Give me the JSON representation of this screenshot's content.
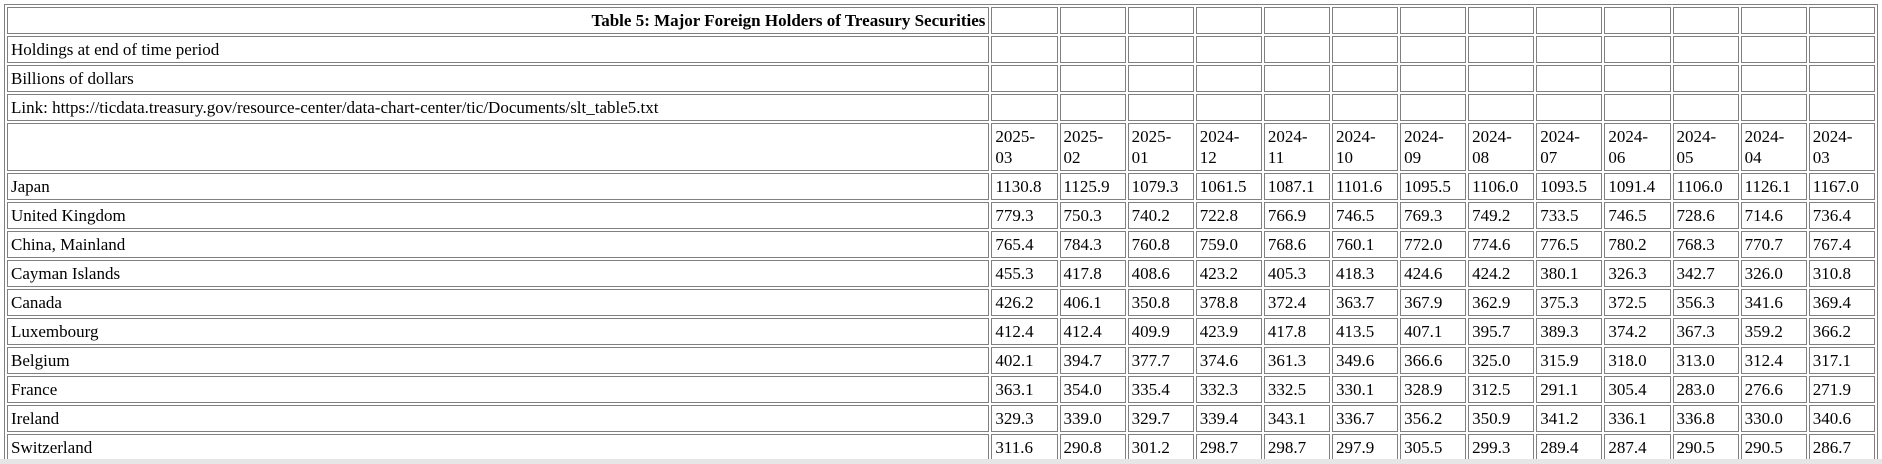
{
  "header": {
    "title": "Table 5: Major Foreign Holders of Treasury Securities",
    "subtitle1": "Holdings at end of time period",
    "subtitle2": "Billions of dollars",
    "link_line": "Link: https://ticdata.treasury.gov/resource-center/data-chart-center/tic/Documents/slt_table5.txt"
  },
  "colors": {
    "border": "#808080",
    "background": "#ffffff",
    "text": "#000000"
  },
  "chart_data": {
    "type": "table",
    "columns": [
      "2025-03",
      "2025-02",
      "2025-01",
      "2024-12",
      "2024-11",
      "2024-10",
      "2024-09",
      "2024-08",
      "2024-07",
      "2024-06",
      "2024-05",
      "2024-04",
      "2024-03"
    ],
    "rows": [
      {
        "label": "Japan",
        "values": [
          "1130.8",
          "1125.9",
          "1079.3",
          "1061.5",
          "1087.1",
          "1101.6",
          "1095.5",
          "1106.0",
          "1093.5",
          "1091.4",
          "1106.0",
          "1126.1",
          "1167.0"
        ]
      },
      {
        "label": "United Kingdom",
        "values": [
          "779.3",
          "750.3",
          "740.2",
          "722.8",
          "766.9",
          "746.5",
          "769.3",
          "749.2",
          "733.5",
          "746.5",
          "728.6",
          "714.6",
          "736.4"
        ]
      },
      {
        "label": "China, Mainland",
        "values": [
          "765.4",
          "784.3",
          "760.8",
          "759.0",
          "768.6",
          "760.1",
          "772.0",
          "774.6",
          "776.5",
          "780.2",
          "768.3",
          "770.7",
          "767.4"
        ]
      },
      {
        "label": "Cayman Islands",
        "values": [
          "455.3",
          "417.8",
          "408.6",
          "423.2",
          "405.3",
          "418.3",
          "424.6",
          "424.2",
          "380.1",
          "326.3",
          "342.7",
          "326.0",
          "310.8"
        ]
      },
      {
        "label": "Canada",
        "values": [
          "426.2",
          "406.1",
          "350.8",
          "378.8",
          "372.4",
          "363.7",
          "367.9",
          "362.9",
          "375.3",
          "372.5",
          "356.3",
          "341.6",
          "369.4"
        ]
      },
      {
        "label": "Luxembourg",
        "values": [
          "412.4",
          "412.4",
          "409.9",
          "423.9",
          "417.8",
          "413.5",
          "407.1",
          "395.7",
          "389.3",
          "374.2",
          "367.3",
          "359.2",
          "366.2"
        ]
      },
      {
        "label": "Belgium",
        "values": [
          "402.1",
          "394.7",
          "377.7",
          "374.6",
          "361.3",
          "349.6",
          "366.6",
          "325.0",
          "315.9",
          "318.0",
          "313.0",
          "312.4",
          "317.1"
        ]
      },
      {
        "label": "France",
        "values": [
          "363.1",
          "354.0",
          "335.4",
          "332.3",
          "332.5",
          "330.1",
          "328.9",
          "312.5",
          "291.1",
          "305.4",
          "283.0",
          "276.6",
          "271.9"
        ]
      },
      {
        "label": "Ireland",
        "values": [
          "329.3",
          "339.0",
          "329.7",
          "339.4",
          "343.1",
          "336.7",
          "356.2",
          "350.9",
          "341.2",
          "336.1",
          "336.8",
          "330.0",
          "340.6"
        ]
      },
      {
        "label": "Switzerland",
        "values": [
          "311.6",
          "290.8",
          "301.2",
          "298.7",
          "298.7",
          "297.9",
          "305.5",
          "299.3",
          "289.4",
          "287.4",
          "290.5",
          "290.5",
          "286.7"
        ]
      }
    ]
  }
}
